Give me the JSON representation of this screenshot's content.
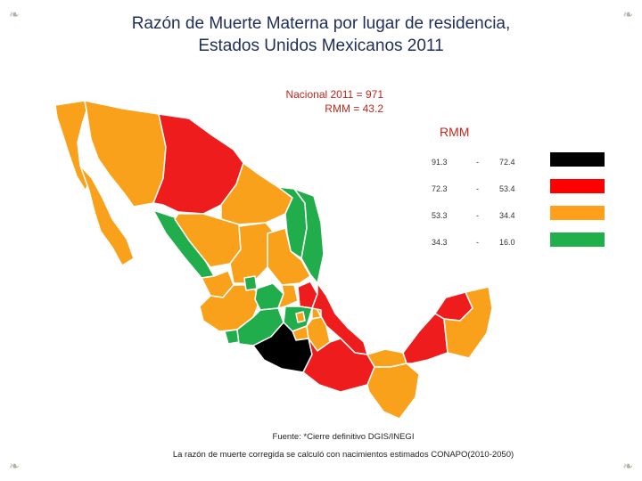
{
  "title_line1": "Razón de Muerte Materna por lugar de residencia,",
  "title_line2": "Estados Unidos Mexicanos 2011",
  "nacional": {
    "line1": "Nacional 2011 = 971",
    "line2": "RMM = 43.2"
  },
  "legend": {
    "heading": "RMM",
    "items": [
      {
        "low": "91.3",
        "dash": "-",
        "high": "72.4",
        "color": "#000000"
      },
      {
        "low": "72.3",
        "dash": "-",
        "high": "53.4",
        "color": "#ff0000"
      },
      {
        "low": "53.3",
        "dash": "-",
        "high": "34.4",
        "color": "#ff9f1a"
      },
      {
        "low": "34.3",
        "dash": "-",
        "high": "16.0",
        "color": "#20b04a"
      }
    ]
  },
  "colors": {
    "black": "#000000",
    "red": "#ee1c1c",
    "orange": "#f9a11b",
    "green": "#21ad4b"
  },
  "footer": {
    "source": "Fuente: *Cierre definitivo DGIS/INEGI",
    "note": "La razón de muerte corregida se calculó con nacimientos estimados CONAPO(2010-2050)"
  },
  "decor": {
    "corner_glyph": "❧"
  }
}
